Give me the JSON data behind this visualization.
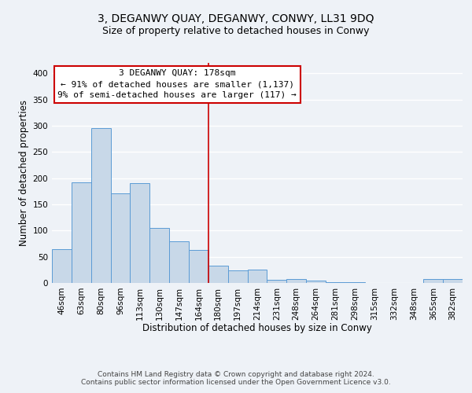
{
  "title": "3, DEGANWY QUAY, DEGANWY, CONWY, LL31 9DQ",
  "subtitle": "Size of property relative to detached houses in Conwy",
  "xlabel": "Distribution of detached houses by size in Conwy",
  "ylabel": "Number of detached properties",
  "bar_labels": [
    "46sqm",
    "63sqm",
    "80sqm",
    "96sqm",
    "113sqm",
    "130sqm",
    "147sqm",
    "164sqm",
    "180sqm",
    "197sqm",
    "214sqm",
    "231sqm",
    "248sqm",
    "264sqm",
    "281sqm",
    "298sqm",
    "315sqm",
    "332sqm",
    "348sqm",
    "365sqm",
    "382sqm"
  ],
  "bar_values": [
    65,
    192,
    295,
    171,
    190,
    105,
    80,
    63,
    33,
    24,
    25,
    6,
    8,
    5,
    2,
    1,
    0,
    0,
    0,
    8,
    8
  ],
  "bar_color": "#c8d8e8",
  "bar_edge_color": "#5b9bd5",
  "vline_color": "#cc0000",
  "annotation_title": "3 DEGANWY QUAY: 178sqm",
  "annotation_line1": "← 91% of detached houses are smaller (1,137)",
  "annotation_line2": "9% of semi-detached houses are larger (117) →",
  "annotation_box_color": "#ffffff",
  "annotation_box_edge": "#cc0000",
  "ylim": [
    0,
    420
  ],
  "yticks": [
    0,
    50,
    100,
    150,
    200,
    250,
    300,
    350,
    400
  ],
  "footer1": "Contains HM Land Registry data © Crown copyright and database right 2024.",
  "footer2": "Contains public sector information licensed under the Open Government Licence v3.0.",
  "background_color": "#eef2f7",
  "grid_color": "#ffffff",
  "title_fontsize": 10,
  "subtitle_fontsize": 9,
  "axis_label_fontsize": 8.5,
  "tick_fontsize": 7.5,
  "annotation_fontsize": 8,
  "footer_fontsize": 6.5
}
